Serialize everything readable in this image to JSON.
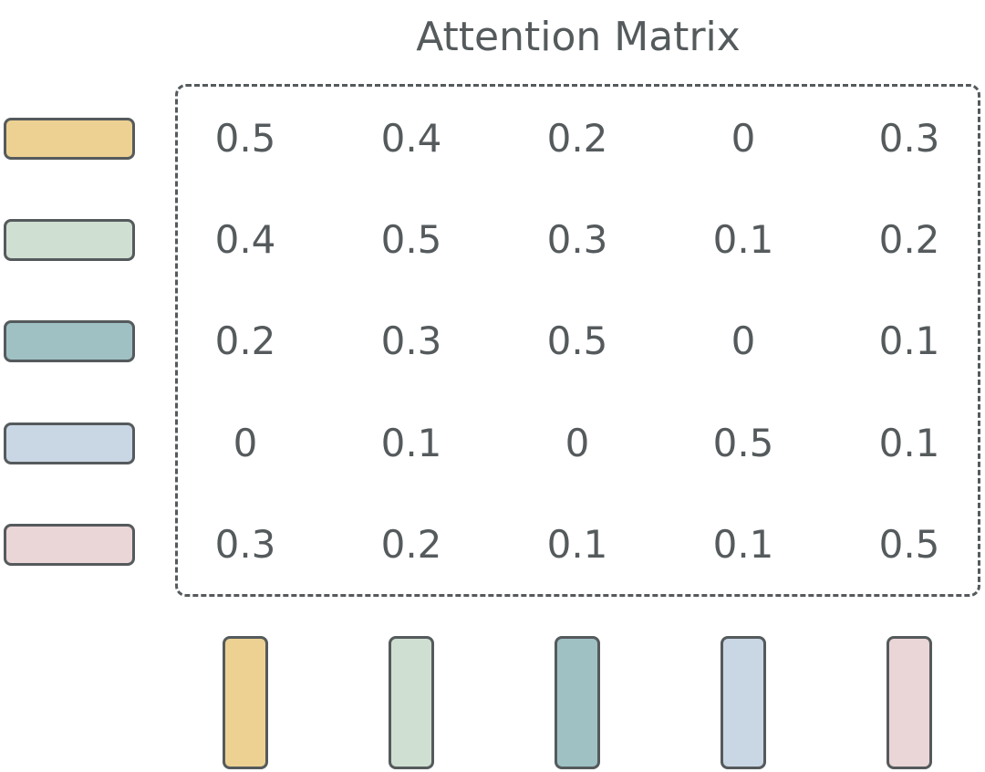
{
  "title": "Attention Matrix",
  "tokens": [
    {
      "name": "token-1",
      "color": "#ecd192"
    },
    {
      "name": "token-2",
      "color": "#cfdfd1"
    },
    {
      "name": "token-3",
      "color": "#9fc1c4"
    },
    {
      "name": "token-4",
      "color": "#c9d6e4"
    },
    {
      "name": "token-5",
      "color": "#ead5d7"
    }
  ],
  "matrix": [
    [
      "0.5",
      "0.4",
      "0.2",
      "0",
      "0.3"
    ],
    [
      "0.4",
      "0.5",
      "0.3",
      "0.1",
      "0.2"
    ],
    [
      "0.2",
      "0.3",
      "0.5",
      "0",
      "0.1"
    ],
    [
      "0",
      "0.1",
      "0",
      "0.5",
      "0.1"
    ],
    [
      "0.3",
      "0.2",
      "0.1",
      "0.1",
      "0.5"
    ]
  ]
}
